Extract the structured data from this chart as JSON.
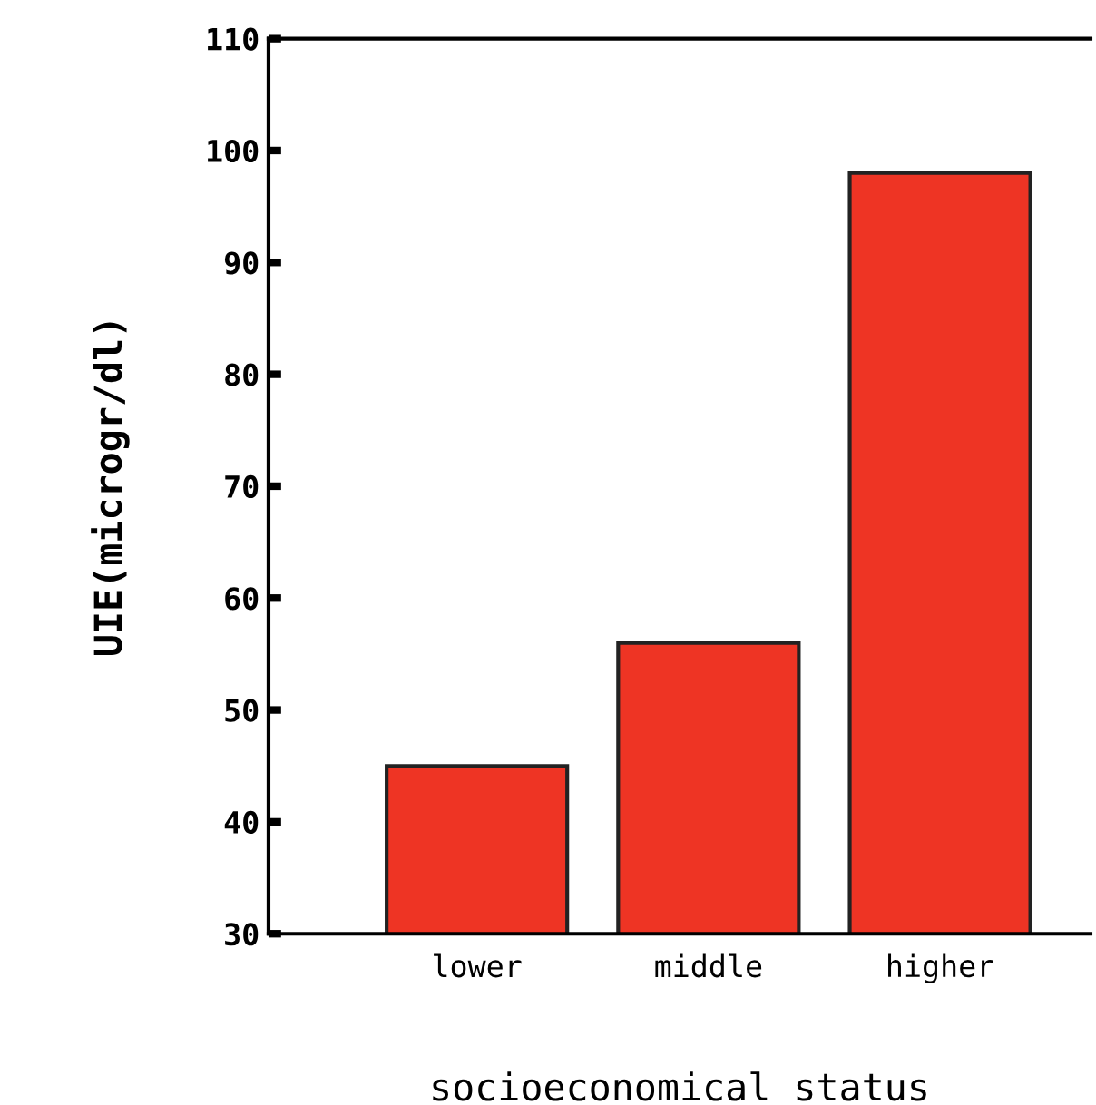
{
  "chart_data": {
    "type": "bar",
    "xlabel": "socioeconomical status",
    "ylabel": "UIE(microgr/dl)",
    "categories": [
      "lower",
      "middle",
      "higher"
    ],
    "values": [
      45,
      56,
      98
    ],
    "color": "#ee3424",
    "ylim": [
      30,
      110
    ],
    "yticks": [
      30,
      40,
      50,
      60,
      70,
      80,
      90,
      100,
      110
    ],
    "grid": false
  }
}
